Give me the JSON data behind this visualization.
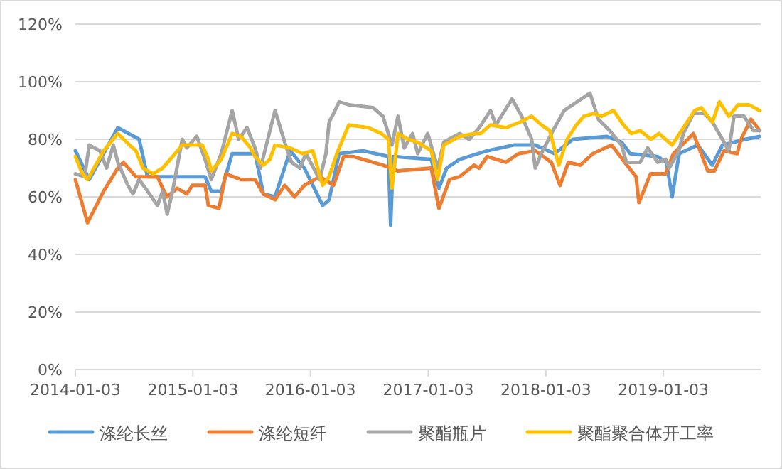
{
  "chart_data": {
    "type": "line",
    "ylim": [
      0,
      1.2
    ],
    "yticks": [
      {
        "value": 0,
        "label": "0%"
      },
      {
        "value": 0.2,
        "label": "20%"
      },
      {
        "value": 0.4,
        "label": "40%"
      },
      {
        "value": 0.6,
        "label": "60%"
      },
      {
        "value": 0.8,
        "label": "80%"
      },
      {
        "value": 1,
        "label": "100%"
      },
      {
        "value": 1.2,
        "label": "120%"
      }
    ],
    "xlim": [
      "2014-01-03",
      "2019-11-01"
    ],
    "xticks": [
      "2014-01-03",
      "2015-01-03",
      "2016-01-03",
      "2017-01-03",
      "2018-01-03",
      "2019-01-03"
    ],
    "grid": "y",
    "legend": "bottom",
    "marker": "none",
    "line_style": "solid",
    "series": [
      {
        "name": "涤纶长丝",
        "color": "#5b9bd5",
        "x": [
          "2014-01-03",
          "2014-02-15",
          "2014-05-15",
          "2014-07-20",
          "2014-08-15",
          "2015-02-10",
          "2015-03-01",
          "2015-04-01",
          "2015-05-05",
          "2015-07-15",
          "2015-08-10",
          "2015-09-15",
          "2015-11-01",
          "2015-12-15",
          "2016-02-10",
          "2016-03-01",
          "2016-04-01",
          "2016-06-15",
          "2016-09-01",
          "2016-09-08",
          "2016-09-16",
          "2017-01-12",
          "2017-02-05",
          "2017-03-01",
          "2017-04-10",
          "2017-07-05",
          "2017-09-25",
          "2017-12-01",
          "2018-01-30",
          "2018-03-28",
          "2018-07-12",
          "2018-08-26",
          "2018-09-22",
          "2018-12-16",
          "2019-01-12",
          "2019-01-30",
          "2019-02-21",
          "2019-04-20",
          "2019-06-04",
          "2019-07-05",
          "2019-09-15",
          "2019-10-29"
        ],
        "values": [
          0.76,
          0.66,
          0.84,
          0.8,
          0.67,
          0.67,
          0.62,
          0.62,
          0.75,
          0.75,
          0.61,
          0.6,
          0.76,
          0.7,
          0.57,
          0.59,
          0.75,
          0.76,
          0.74,
          0.5,
          0.74,
          0.73,
          0.63,
          0.7,
          0.73,
          0.76,
          0.78,
          0.78,
          0.75,
          0.8,
          0.81,
          0.79,
          0.75,
          0.74,
          0.72,
          0.6,
          0.75,
          0.78,
          0.71,
          0.78,
          0.8,
          0.81
        ]
      },
      {
        "name": "涤纶短纤",
        "color": "#ed7d31",
        "x": [
          "2014-01-03",
          "2014-02-10",
          "2014-04-01",
          "2014-05-15",
          "2014-06-01",
          "2014-07-10",
          "2014-09-15",
          "2014-10-01",
          "2014-10-15",
          "2014-11-15",
          "2014-12-15",
          "2015-01-01",
          "2015-02-10",
          "2015-02-20",
          "2015-03-25",
          "2015-04-15",
          "2015-06-01",
          "2015-07-15",
          "2015-08-10",
          "2015-09-15",
          "2015-10-15",
          "2015-11-15",
          "2015-12-15",
          "2016-02-01",
          "2016-03-15",
          "2016-04-15",
          "2016-05-15",
          "2016-08-15",
          "2016-10-01",
          "2017-01-12",
          "2017-02-05",
          "2017-03-10",
          "2017-04-10",
          "2017-05-25",
          "2017-06-10",
          "2017-07-05",
          "2017-09-01",
          "2017-10-10",
          "2017-12-01",
          "2018-01-20",
          "2018-02-16",
          "2018-03-14",
          "2018-04-20",
          "2018-05-29",
          "2018-07-26",
          "2018-09-05",
          "2018-10-10",
          "2018-10-19",
          "2018-11-24",
          "2019-01-10",
          "2019-02-03",
          "2019-04-06",
          "2019-05-21",
          "2019-06-10",
          "2019-07-10",
          "2019-08-20",
          "2019-09-01",
          "2019-10-02",
          "2019-10-29"
        ],
        "values": [
          0.66,
          0.51,
          0.62,
          0.7,
          0.72,
          0.67,
          0.67,
          0.63,
          0.6,
          0.63,
          0.61,
          0.64,
          0.64,
          0.57,
          0.56,
          0.68,
          0.66,
          0.66,
          0.61,
          0.59,
          0.64,
          0.6,
          0.64,
          0.67,
          0.64,
          0.74,
          0.74,
          0.71,
          0.69,
          0.7,
          0.56,
          0.66,
          0.67,
          0.71,
          0.7,
          0.74,
          0.72,
          0.75,
          0.76,
          0.72,
          0.64,
          0.72,
          0.71,
          0.75,
          0.78,
          0.72,
          0.67,
          0.58,
          0.68,
          0.68,
          0.75,
          0.82,
          0.69,
          0.69,
          0.76,
          0.75,
          0.8,
          0.87,
          0.83
        ]
      },
      {
        "name": "聚酯瓶片",
        "color": "#a5a5a5",
        "x": [
          "2014-01-03",
          "2014-02-01",
          "2014-02-15",
          "2014-03-20",
          "2014-04-10",
          "2014-05-01",
          "2014-05-15",
          "2014-06-15",
          "2014-07-01",
          "2014-07-20",
          "2014-08-15",
          "2014-09-15",
          "2014-10-01",
          "2014-10-15",
          "2014-11-01",
          "2014-12-01",
          "2014-12-15",
          "2015-01-15",
          "2015-02-10",
          "2015-03-01",
          "2015-04-01",
          "2015-05-05",
          "2015-05-25",
          "2015-06-20",
          "2015-07-15",
          "2015-08-01",
          "2015-09-15",
          "2015-10-15",
          "2015-11-05",
          "2015-12-01",
          "2015-12-20",
          "2016-02-01",
          "2016-02-20",
          "2016-03-01",
          "2016-03-15",
          "2016-04-01",
          "2016-05-01",
          "2016-07-15",
          "2016-08-15",
          "2016-09-12",
          "2016-10-01",
          "2016-10-20",
          "2016-11-15",
          "2016-12-01",
          "2017-01-01",
          "2017-02-01",
          "2017-02-20",
          "2017-04-10",
          "2017-05-10",
          "2017-06-10",
          "2017-07-15",
          "2017-08-01",
          "2017-09-20",
          "2017-10-20",
          "2017-11-20",
          "2017-12-01",
          "2017-12-20",
          "2018-01-25",
          "2018-03-01",
          "2018-05-20",
          "2018-06-15",
          "2018-07-20",
          "2018-08-26",
          "2018-09-10",
          "2018-10-23",
          "2018-11-15",
          "2018-12-16",
          "2019-01-10",
          "2019-01-21",
          "2019-02-20",
          "2019-03-06",
          "2019-04-06",
          "2019-05-10",
          "2019-06-04",
          "2019-07-05",
          "2019-07-25",
          "2019-08-10",
          "2019-09-10",
          "2019-10-10",
          "2019-10-29"
        ],
        "values": [
          0.68,
          0.67,
          0.78,
          0.76,
          0.7,
          0.78,
          0.72,
          0.64,
          0.61,
          0.66,
          0.62,
          0.57,
          0.62,
          0.54,
          0.62,
          0.8,
          0.77,
          0.81,
          0.73,
          0.66,
          0.75,
          0.9,
          0.8,
          0.84,
          0.77,
          0.7,
          0.9,
          0.79,
          0.72,
          0.7,
          0.75,
          0.66,
          0.75,
          0.86,
          0.89,
          0.93,
          0.92,
          0.91,
          0.88,
          0.78,
          0.88,
          0.77,
          0.82,
          0.75,
          0.82,
          0.7,
          0.79,
          0.82,
          0.8,
          0.84,
          0.9,
          0.85,
          0.94,
          0.88,
          0.8,
          0.7,
          0.75,
          0.83,
          0.9,
          0.96,
          0.87,
          0.83,
          0.78,
          0.72,
          0.72,
          0.77,
          0.72,
          0.73,
          0.7,
          0.76,
          0.82,
          0.89,
          0.89,
          0.86,
          0.8,
          0.76,
          0.88,
          0.88,
          0.83,
          0.83
        ]
      },
      {
        "name": "聚酯聚合体开工率",
        "color": "#ffc000",
        "x": [
          "2014-01-03",
          "2014-01-25",
          "2014-02-10",
          "2014-04-01",
          "2014-05-15",
          "2014-06-20",
          "2014-07-10",
          "2014-08-01",
          "2014-09-01",
          "2014-10-01",
          "2014-11-01",
          "2014-12-01",
          "2015-02-01",
          "2015-02-20",
          "2015-03-01",
          "2015-04-01",
          "2015-05-05",
          "2015-06-01",
          "2015-07-01",
          "2015-07-15",
          "2015-08-10",
          "2015-08-30",
          "2015-09-15",
          "2015-11-01",
          "2015-12-10",
          "2016-01-10",
          "2016-02-10",
          "2016-03-01",
          "2016-03-25",
          "2016-05-01",
          "2016-07-01",
          "2016-08-10",
          "2016-09-01",
          "2016-09-12",
          "2016-10-01",
          "2016-11-01",
          "2016-12-01",
          "2017-01-12",
          "2017-02-01",
          "2017-02-20",
          "2017-04-10",
          "2017-05-25",
          "2017-06-15",
          "2017-07-15",
          "2017-09-01",
          "2017-10-15",
          "2017-11-20",
          "2017-12-20",
          "2018-01-15",
          "2018-02-12",
          "2018-03-10",
          "2018-04-08",
          "2018-05-01",
          "2018-06-01",
          "2018-06-25",
          "2018-08-01",
          "2018-09-01",
          "2018-09-25",
          "2018-10-23",
          "2018-11-25",
          "2018-12-20",
          "2019-01-30",
          "2019-03-06",
          "2019-04-10",
          "2019-05-01",
          "2019-06-04",
          "2019-06-26",
          "2019-07-25",
          "2019-08-23",
          "2019-09-25",
          "2019-10-29"
        ],
        "values": [
          0.74,
          0.68,
          0.66,
          0.76,
          0.82,
          0.78,
          0.76,
          0.7,
          0.68,
          0.7,
          0.74,
          0.78,
          0.78,
          0.73,
          0.69,
          0.73,
          0.82,
          0.81,
          0.77,
          0.74,
          0.71,
          0.73,
          0.78,
          0.77,
          0.75,
          0.76,
          0.64,
          0.67,
          0.75,
          0.85,
          0.84,
          0.82,
          0.8,
          0.63,
          0.82,
          0.8,
          0.79,
          0.76,
          0.66,
          0.78,
          0.81,
          0.82,
          0.82,
          0.85,
          0.84,
          0.86,
          0.88,
          0.85,
          0.83,
          0.71,
          0.8,
          0.85,
          0.88,
          0.89,
          0.88,
          0.9,
          0.85,
          0.82,
          0.83,
          0.8,
          0.82,
          0.78,
          0.84,
          0.9,
          0.91,
          0.86,
          0.93,
          0.88,
          0.92,
          0.92,
          0.9
        ]
      }
    ]
  }
}
